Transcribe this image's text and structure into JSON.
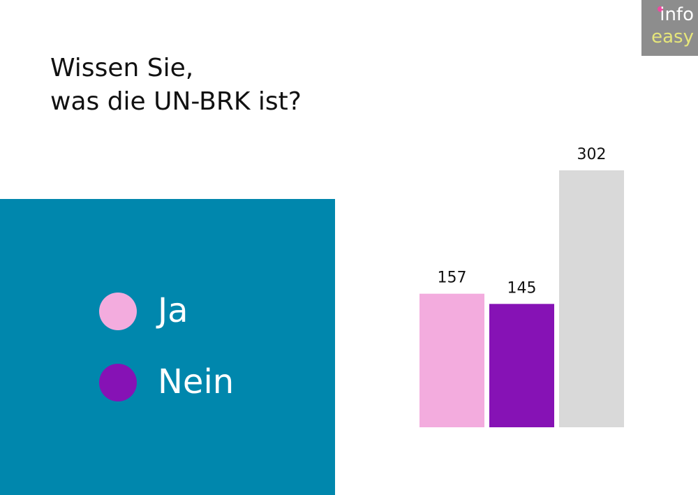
{
  "title_lines": [
    "Wissen Sie,",
    "was die UN-BRK ist?"
  ],
  "logo": {
    "line1": "info",
    "line2": "easy"
  },
  "legend": [
    {
      "label": "Ja",
      "color": "#f3acde"
    },
    {
      "label": "Nein",
      "color": "#8612b5"
    }
  ],
  "colors": {
    "panel": "#0087ad",
    "total_bar": "#d9d9d9"
  },
  "chart_data": {
    "type": "bar",
    "categories": [
      "Ja",
      "Nein",
      ""
    ],
    "values": [
      157,
      145,
      302
    ],
    "colors": [
      "#f3acde",
      "#8612b5",
      "#d9d9d9"
    ],
    "title": "Wissen Sie, was die UN-BRK ist?",
    "ylim": [
      0,
      302
    ],
    "grid": false,
    "legend_position": "left"
  }
}
